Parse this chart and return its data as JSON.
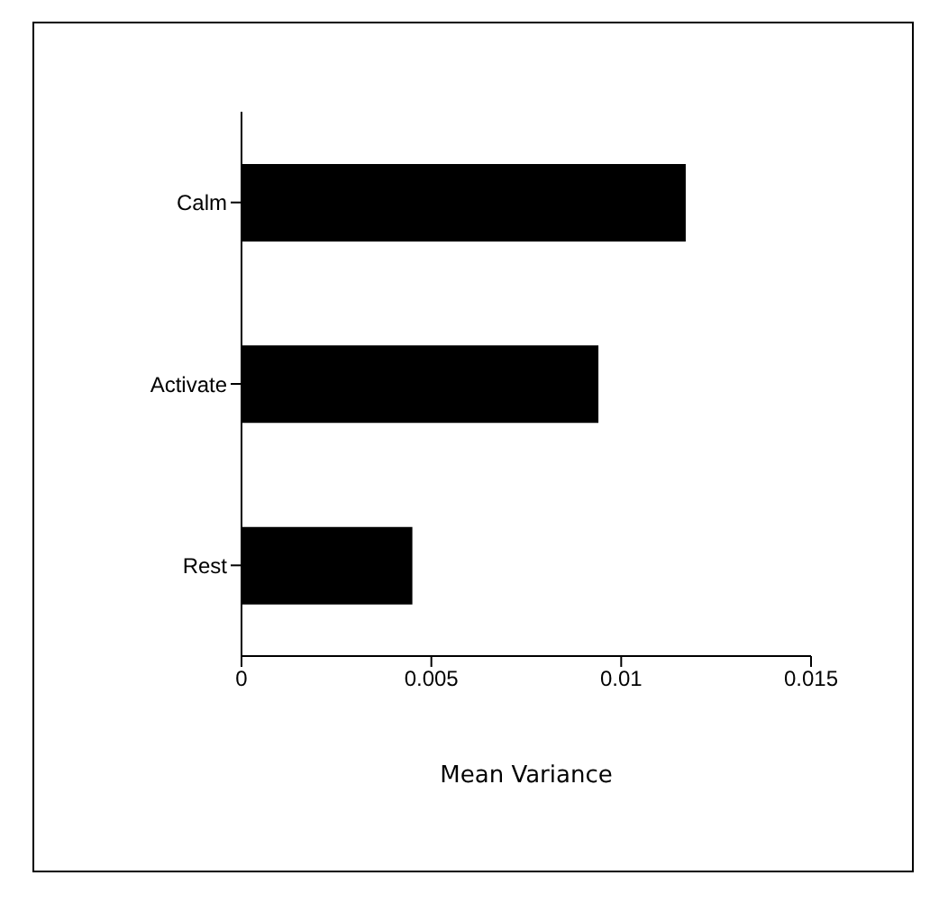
{
  "chart_data": {
    "type": "bar",
    "orientation": "horizontal",
    "xlabel": "Mean Variance",
    "categories": [
      "Calm",
      "Activate",
      "Rest"
    ],
    "values": [
      0.0117,
      0.0094,
      0.0045
    ],
    "color": "#000000",
    "xlim": [
      0,
      0.015
    ],
    "xticks": [
      0,
      0.005,
      0.01,
      0.015
    ],
    "grid": false,
    "legend": false
  }
}
